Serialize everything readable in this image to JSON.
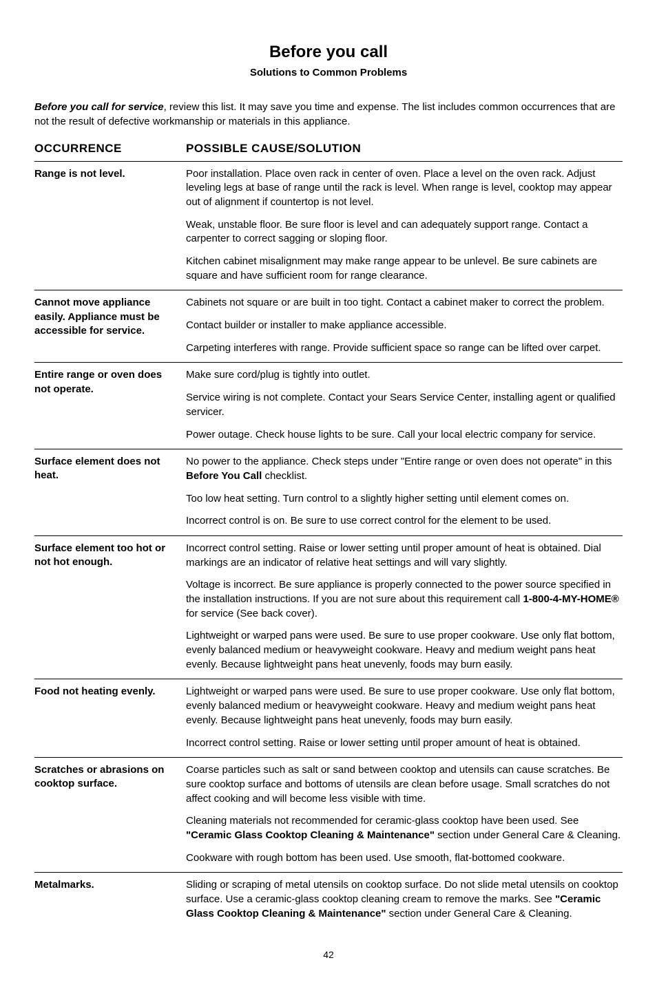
{
  "title": "Before you call",
  "subtitle": "Solutions to Common Problems",
  "intro_lead": "Before you call for service",
  "intro_rest": ", review this list. It may save you time and expense. The list includes common occurrences that are not the result of defective workmanship or materials in this appliance.",
  "header_occurrence": "OCCURRENCE",
  "header_solution": "POSSIBLE CAUSE/SOLUTION",
  "sections": [
    {
      "occurrence": "Range is not level.",
      "solutions": [
        [
          {
            "t": "Poor installation. Place oven rack in center of oven. Place a level on the oven rack. Adjust leveling legs at base of range until the rack is level. When range is level, cooktop may appear out of alignment if countertop is not level."
          }
        ],
        [
          {
            "t": "Weak, unstable floor. Be sure floor is level and can adequately support range. Contact a carpenter to correct sagging or sloping floor."
          }
        ],
        [
          {
            "t": "Kitchen cabinet misalignment may make range appear to be unlevel. Be sure cabinets are square and have sufficient room for range clearance."
          }
        ]
      ]
    },
    {
      "occurrence": "Cannot move appliance easily.  Appliance must be accessible for service.",
      "solutions": [
        [
          {
            "t": "Cabinets not square or are built in too tight. Contact a cabinet maker to correct the problem."
          }
        ],
        [
          {
            "t": "Contact builder or installer to make appliance accessible."
          }
        ],
        [
          {
            "t": "Carpeting interferes with range. Provide sufficient space so range can be lifted over carpet."
          }
        ]
      ]
    },
    {
      "occurrence": "Entire range or oven does not operate.",
      "solutions": [
        [
          {
            "t": "Make sure cord/plug is tightly into outlet."
          }
        ],
        [
          {
            "t": "Service wiring is not complete. Contact your Sears Service Center, installing agent or qualified servicer."
          }
        ],
        [
          {
            "t": "Power outage. Check house lights to be sure. Call your local electric company for service."
          }
        ]
      ]
    },
    {
      "occurrence": "Surface element does not heat.",
      "solutions": [
        [
          {
            "t": "No power to the appliance. Check steps under \"Entire range or oven does not operate\" in this "
          },
          {
            "t": "Before You Call",
            "b": true
          },
          {
            "t": " checklist."
          }
        ],
        [
          {
            "t": "Too low heat setting. Turn control to a slightly higher setting until element comes on."
          }
        ],
        [
          {
            "t": "Incorrect control is on. Be sure to use correct control for the element to be used."
          }
        ]
      ]
    },
    {
      "occurrence": "Surface element too hot or not hot enough.",
      "solutions": [
        [
          {
            "t": "Incorrect control setting. Raise or lower setting until proper amount of heat is obtained. Dial markings are an indicator of relative heat settings and will vary slightly."
          }
        ],
        [
          {
            "t": "Voltage is incorrect. Be sure appliance is properly connected to the power source specified in the installation instructions. If you are not sure about this requirement call "
          },
          {
            "t": "1-800-4-MY-HOME®",
            "b": true
          },
          {
            "t": " for service (See back cover)."
          }
        ],
        [
          {
            "t": "Lightweight or warped pans were used. Be sure to use proper cookware. Use only flat bottom, evenly balanced medium or heavyweight cookware. Heavy and medium weight pans heat evenly. Because lightweight pans heat unevenly, foods may burn easily."
          }
        ]
      ]
    },
    {
      "occurrence": "Food not heating evenly.",
      "solutions": [
        [
          {
            "t": "Lightweight or warped pans were used. Be sure to use proper cookware. Use only flat bottom, evenly balanced medium or heavyweight cookware. Heavy and medium weight pans heat evenly. Because lightweight pans heat unevenly, foods may burn easily."
          }
        ],
        [
          {
            "t": "Incorrect control setting. Raise or lower setting until proper amount of heat is obtained."
          }
        ]
      ]
    },
    {
      "occurrence": "Scratches or abrasions on cooktop surface.",
      "solutions": [
        [
          {
            "t": "Coarse particles such as salt or sand between cooktop and utensils can cause scratches. Be sure cooktop surface and bottoms of utensils are clean before usage. Small scratches do not affect cooking and will become less visible with time."
          }
        ],
        [
          {
            "t": "Cleaning materials not recommended for ceramic-glass cooktop have been used.  See "
          },
          {
            "t": "\"Ceramic Glass Cooktop Cleaning & Maintenance\"",
            "b": true
          },
          {
            "t": " section under General Care & Cleaning."
          }
        ],
        [
          {
            "t": "Cookware with rough bottom has been used. Use smooth, flat-bottomed cookware."
          }
        ]
      ]
    },
    {
      "occurrence": "Metalmarks.",
      "solutions": [
        [
          {
            "t": "Sliding or scraping of metal utensils on cooktop surface. Do not slide metal utensils on cooktop surface. Use a ceramic-glass cooktop cleaning cream to remove the marks.  See "
          },
          {
            "t": "\"Ceramic Glass Cooktop Cleaning & Maintenance\"",
            "b": true
          },
          {
            "t": " section under General Care & Cleaning."
          }
        ]
      ]
    }
  ],
  "page_number": "42"
}
